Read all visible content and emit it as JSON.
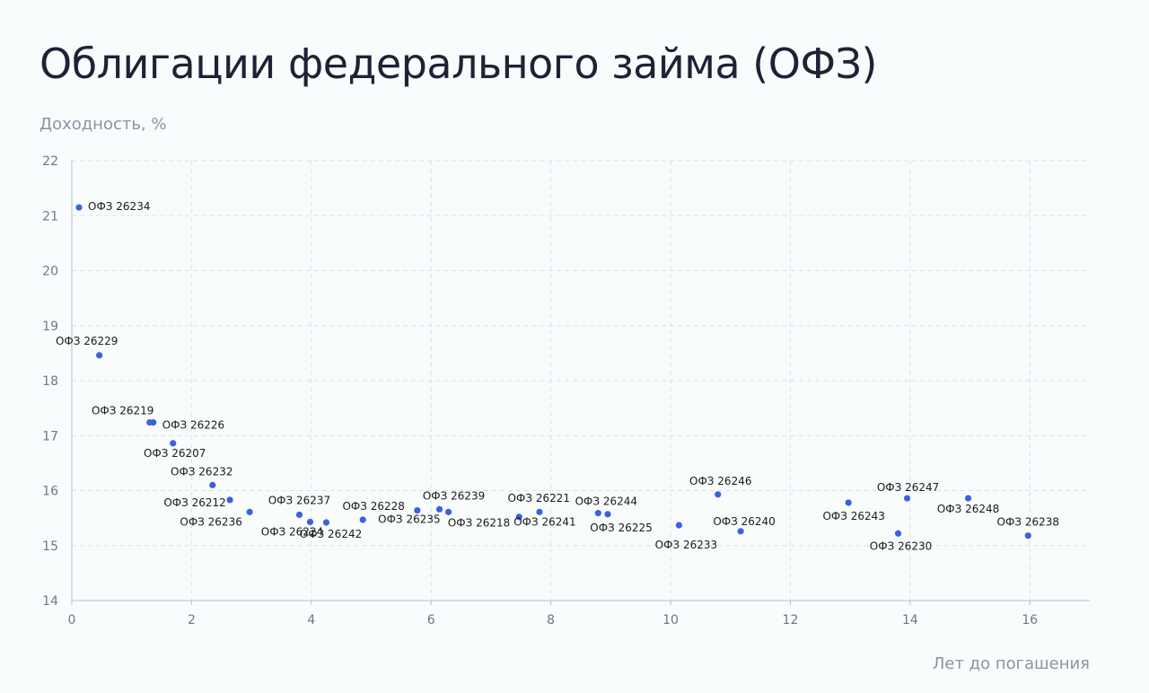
{
  "title": "Облигации федерального займа (ОФЗ)",
  "chart_data": {
    "type": "scatter",
    "ylabel": "Доходность, %",
    "xlabel": "Лет до погашения",
    "xlim": [
      0,
      17
    ],
    "ylim": [
      14,
      22
    ],
    "xticks": [
      0,
      2,
      4,
      6,
      8,
      10,
      12,
      14,
      16
    ],
    "yticks": [
      14,
      15,
      16,
      17,
      18,
      19,
      20,
      21,
      22
    ],
    "grid": true,
    "marker_color": "#3a62e0",
    "points": [
      {
        "label": "ОФЗ 26234",
        "x": 0.12,
        "y": 21.15
      },
      {
        "label": "ОФЗ 26229",
        "x": 0.46,
        "y": 18.46
      },
      {
        "label": "ОФЗ 26219",
        "x": 1.3,
        "y": 17.24
      },
      {
        "label": "ОФЗ 26226",
        "x": 1.36,
        "y": 17.24
      },
      {
        "label": "ОФЗ 26207",
        "x": 1.69,
        "y": 16.86
      },
      {
        "label": "ОФЗ 26232",
        "x": 2.35,
        "y": 16.1
      },
      {
        "label": "ОФЗ 26212",
        "x": 2.64,
        "y": 15.83
      },
      {
        "label": "ОФЗ 26236",
        "x": 2.97,
        "y": 15.61
      },
      {
        "label": "ОФЗ 26237",
        "x": 3.8,
        "y": 15.56
      },
      {
        "label": "ОФЗ 26224",
        "x": 3.98,
        "y": 15.43
      },
      {
        "label": "ОФЗ 26242",
        "x": 4.25,
        "y": 15.42
      },
      {
        "label": "ОФЗ 26228",
        "x": 4.86,
        "y": 15.47
      },
      {
        "label": "ОФЗ 26235",
        "x": 5.77,
        "y": 15.64
      },
      {
        "label": "ОФЗ 26239",
        "x": 6.14,
        "y": 15.66
      },
      {
        "label": "ОФЗ 26218",
        "x": 6.29,
        "y": 15.61
      },
      {
        "label": "ОФЗ 26221",
        "x": 7.47,
        "y": 15.52
      },
      {
        "label": "ОФЗ 26241",
        "x": 7.81,
        "y": 15.61
      },
      {
        "label": "ОФЗ 26244",
        "x": 8.79,
        "y": 15.59
      },
      {
        "label": "ОФЗ 26225",
        "x": 8.95,
        "y": 15.57
      },
      {
        "label": "ОФЗ 26233",
        "x": 10.14,
        "y": 15.37
      },
      {
        "label": "ОФЗ 26246",
        "x": 10.79,
        "y": 15.93
      },
      {
        "label": "ОФЗ 26240",
        "x": 11.17,
        "y": 15.26
      },
      {
        "label": "ОФЗ 26243",
        "x": 12.97,
        "y": 15.78
      },
      {
        "label": "ОФЗ 26230",
        "x": 13.8,
        "y": 15.22
      },
      {
        "label": "ОФЗ 26247",
        "x": 13.95,
        "y": 15.86
      },
      {
        "label": "ОФЗ 26248",
        "x": 14.97,
        "y": 15.86
      },
      {
        "label": "ОФЗ 26238",
        "x": 15.97,
        "y": 15.18
      }
    ]
  }
}
